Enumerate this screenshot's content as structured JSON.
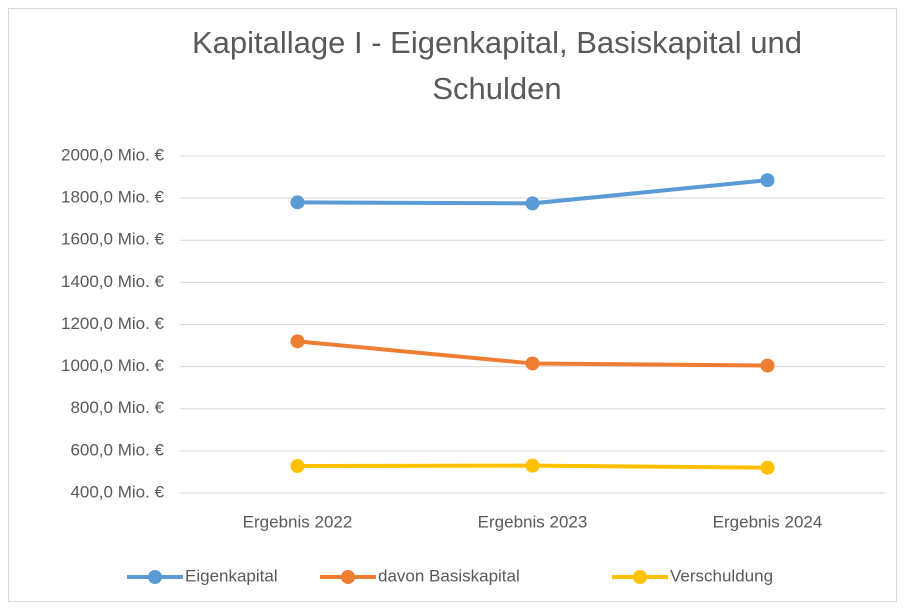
{
  "chart_data": {
    "type": "line",
    "title": "Kapitallage I - Eigenkapital, Basiskapital und Schulden",
    "categories": [
      "Ergebnis 2022",
      "Ergebnis 2023",
      "Ergebnis 2024"
    ],
    "series": [
      {
        "name": "Eigenkapital",
        "color": "#5b9bd5",
        "values": [
          1780,
          1775,
          1885
        ]
      },
      {
        "name": "davon Basiskapital",
        "color": "#ed7d31",
        "values": [
          1120,
          1015,
          1005
        ]
      },
      {
        "name": "Verschuldung",
        "color": "#ffc000",
        "values": [
          528,
          530,
          520
        ]
      }
    ],
    "ylim": [
      400,
      2000
    ],
    "yticks": [
      {
        "value": 400,
        "label": "400,0 Mio. €"
      },
      {
        "value": 600,
        "label": "600,0 Mio. €"
      },
      {
        "value": 800,
        "label": "800,0 Mio. €"
      },
      {
        "value": 1000,
        "label": "1000,0 Mio. €"
      },
      {
        "value": 1200,
        "label": "1200,0 Mio. €"
      },
      {
        "value": 1400,
        "label": "1400,0 Mio. €"
      },
      {
        "value": 1600,
        "label": "1600,0 Mio. €"
      },
      {
        "value": 1800,
        "label": "1800,0 Mio. €"
      },
      {
        "value": 2000,
        "label": "2000,0 Mio. €"
      }
    ],
    "grid": true,
    "legend": "bottom"
  }
}
